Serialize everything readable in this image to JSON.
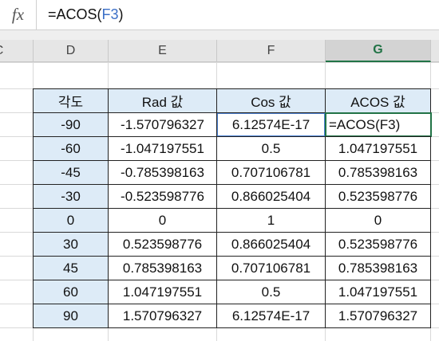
{
  "formula_bar": {
    "icon": "fx",
    "parts": [
      "=ACOS(",
      "F3",
      ")"
    ]
  },
  "column_headers": [
    "C",
    "D",
    "E",
    "F",
    "G"
  ],
  "table": {
    "header": [
      "각도",
      "Rad 값",
      "Cos 값",
      "ACOS 값"
    ],
    "rows": [
      [
        "-90",
        "-1.570796327",
        "6.12574E-17",
        "=ACOS(F3)"
      ],
      [
        "-60",
        "-1.047197551",
        "0.5",
        "1.047197551"
      ],
      [
        "-45",
        "-0.785398163",
        "0.707106781",
        "0.785398163"
      ],
      [
        "-30",
        "-0.523598776",
        "0.866025404",
        "0.523598776"
      ],
      [
        "0",
        "0",
        "1",
        "0"
      ],
      [
        "30",
        "0.523598776",
        "0.866025404",
        "0.523598776"
      ],
      [
        "45",
        "0.785398163",
        "0.707106781",
        "0.785398163"
      ],
      [
        "60",
        "1.047197551",
        "0.5",
        "1.047197551"
      ],
      [
        "90",
        "1.570796327",
        "6.12574E-17",
        "1.570796327"
      ]
    ]
  }
}
